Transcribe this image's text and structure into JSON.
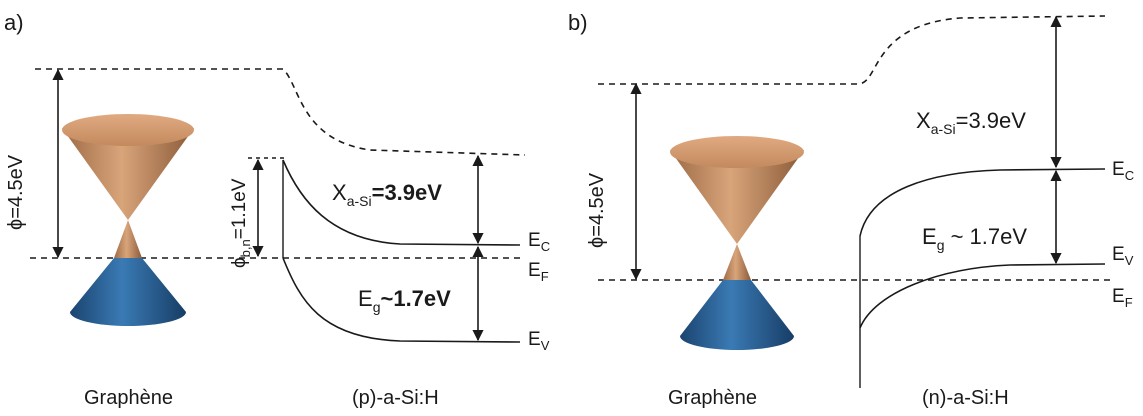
{
  "panels": [
    {
      "tag": "a)",
      "phi": "ϕ=4.5eV",
      "barrier_base": "ϕ",
      "barrier_sub": "b,n",
      "barrier_value": "=1.1eV",
      "affinity_base": "X",
      "affinity_sub": "a-Si",
      "affinity_value": "=3.9eV",
      "gap_base": "E",
      "gap_sub": "g",
      "gap_value": "~1.7eV",
      "ec_base": "E",
      "ec_sub": "C",
      "ef_base": "E",
      "ef_sub": "F",
      "ev_base": "E",
      "ev_sub": "V",
      "left_caption": "Graphène",
      "right_caption": "(p)-a-Si:H"
    },
    {
      "tag": "b)",
      "phi": "ϕ=4.5eV",
      "affinity_base": "X",
      "affinity_sub": "a-Si",
      "affinity_value": "=3.9eV",
      "gap_base": "E",
      "gap_sub": "g",
      "gap_value": " ~ 1.7eV",
      "ec_base": "E",
      "ec_sub": "C",
      "ev_base": "E",
      "ev_sub": "V",
      "ef_base": "E",
      "ef_sub": "F",
      "left_caption": "Graphène",
      "right_caption": "(n)-a-Si:H"
    }
  ],
  "colors": {
    "cone_top": "#c8946a",
    "cone_top_dark": "#8a5a38",
    "cone_bottom": "#2f6da3",
    "cone_bottom_dark": "#1b4470",
    "line": "#1a1a1a"
  }
}
